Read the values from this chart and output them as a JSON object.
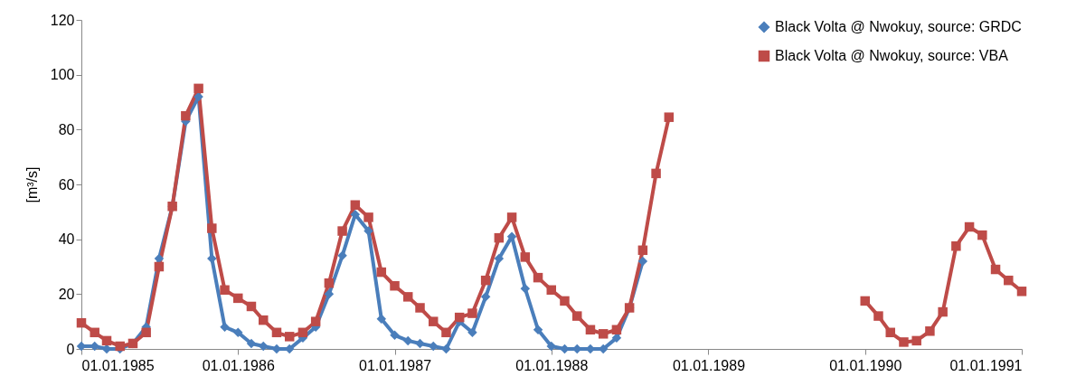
{
  "chart_data": {
    "type": "line",
    "ylabel": "[m³/s]",
    "xlim": [
      "1985-01-01",
      "1991-01-01"
    ],
    "xticks": [
      {
        "value": "1985-01-01",
        "label": "01.01.1985"
      },
      {
        "value": "1986-01-01",
        "label": "01.01.1986"
      },
      {
        "value": "1987-01-01",
        "label": "01.01.1987"
      },
      {
        "value": "1988-01-01",
        "label": "01.01.1988"
      },
      {
        "value": "1989-01-01",
        "label": "01.01.1989"
      },
      {
        "value": "1990-01-01",
        "label": "01.01.1990"
      },
      {
        "value": "1991-01-01",
        "label": "01.01.1991"
      }
    ],
    "ylim": [
      0,
      120
    ],
    "yticks": [
      0,
      20,
      40,
      60,
      80,
      100,
      120
    ],
    "grid": false,
    "legend": "top right",
    "line_style": "solid",
    "series": [
      {
        "name": "Black Volta @ Nwokuy, source: GRDC",
        "color": "#4a7ebb",
        "marker": "diamond",
        "x": [
          "1985-01",
          "1985-02",
          "1985-03",
          "1985-04",
          "1985-05",
          "1985-06",
          "1985-07",
          "1985-08",
          "1985-09",
          "1985-10",
          "1985-11",
          "1985-12",
          "1986-01",
          "1986-02",
          "1986-03",
          "1986-04",
          "1986-05",
          "1986-06",
          "1986-07",
          "1986-08",
          "1986-09",
          "1986-10",
          "1986-11",
          "1986-12",
          "1987-01",
          "1987-02",
          "1987-03",
          "1987-04",
          "1987-05",
          "1987-06",
          "1987-07",
          "1987-08",
          "1987-09",
          "1987-10",
          "1987-11",
          "1987-12",
          "1988-01",
          "1988-02",
          "1988-03",
          "1988-04",
          "1988-05",
          "1988-06",
          "1988-07",
          "1988-08"
        ],
        "values": [
          1,
          1,
          0,
          0,
          2,
          8,
          33,
          52,
          83,
          92,
          33,
          8,
          6,
          2,
          1,
          0,
          0,
          4,
          8,
          20,
          34,
          49,
          43,
          11,
          5,
          3,
          2,
          1,
          0,
          10,
          6,
          19,
          33,
          41,
          22,
          7,
          1,
          0,
          0,
          0,
          0,
          4,
          15,
          32
        ]
      },
      {
        "name": "Black Volta @ Nwokuy, source: VBA",
        "color": "#be4b48",
        "marker": "square",
        "x": [
          "1985-01",
          "1985-02",
          "1985-03",
          "1985-04",
          "1985-05",
          "1985-06",
          "1985-07",
          "1985-08",
          "1985-09",
          "1985-10",
          "1985-11",
          "1985-12",
          "1986-01",
          "1986-02",
          "1986-03",
          "1986-04",
          "1986-05",
          "1986-06",
          "1986-07",
          "1986-08",
          "1986-09",
          "1986-10",
          "1986-11",
          "1986-12",
          "1987-01",
          "1987-02",
          "1987-03",
          "1987-04",
          "1987-05",
          "1987-06",
          "1987-07",
          "1987-08",
          "1987-09",
          "1987-10",
          "1987-11",
          "1987-12",
          "1988-01",
          "1988-02",
          "1988-03",
          "1988-04",
          "1988-05",
          "1988-06",
          "1988-07",
          "1988-08",
          "1988-09",
          "1988-10",
          "1988-11",
          "1988-12",
          "1989-01",
          "1989-02",
          "1989-03",
          "1989-04",
          "1989-05",
          "1989-06",
          "1989-07",
          "1989-08",
          "1989-09",
          "1989-10",
          "1989-11",
          "1989-12",
          "1990-01",
          "1990-02",
          "1990-03",
          "1990-04",
          "1990-05",
          "1990-06",
          "1990-07",
          "1990-08",
          "1990-09",
          "1990-10",
          "1990-11",
          "1990-12",
          "1991-01"
        ],
        "values": [
          9.5,
          6,
          3,
          1,
          2,
          6,
          30,
          52,
          85,
          95,
          44,
          21.5,
          18.5,
          15.5,
          10.5,
          6,
          4.5,
          6,
          10,
          24,
          43,
          52.5,
          48,
          28,
          23,
          19,
          15,
          10,
          6,
          11.5,
          13,
          25,
          40.5,
          48,
          33.5,
          26,
          21.5,
          17.5,
          12,
          7,
          5.5,
          7,
          15,
          36,
          64,
          84.5,
          null,
          null,
          null,
          null,
          null,
          null,
          null,
          null,
          null,
          null,
          null,
          null,
          null,
          null,
          17.5,
          12,
          6,
          2.5,
          3,
          6.5,
          13.5,
          37.5,
          44.5,
          41.5,
          29,
          25,
          21
        ]
      }
    ]
  }
}
